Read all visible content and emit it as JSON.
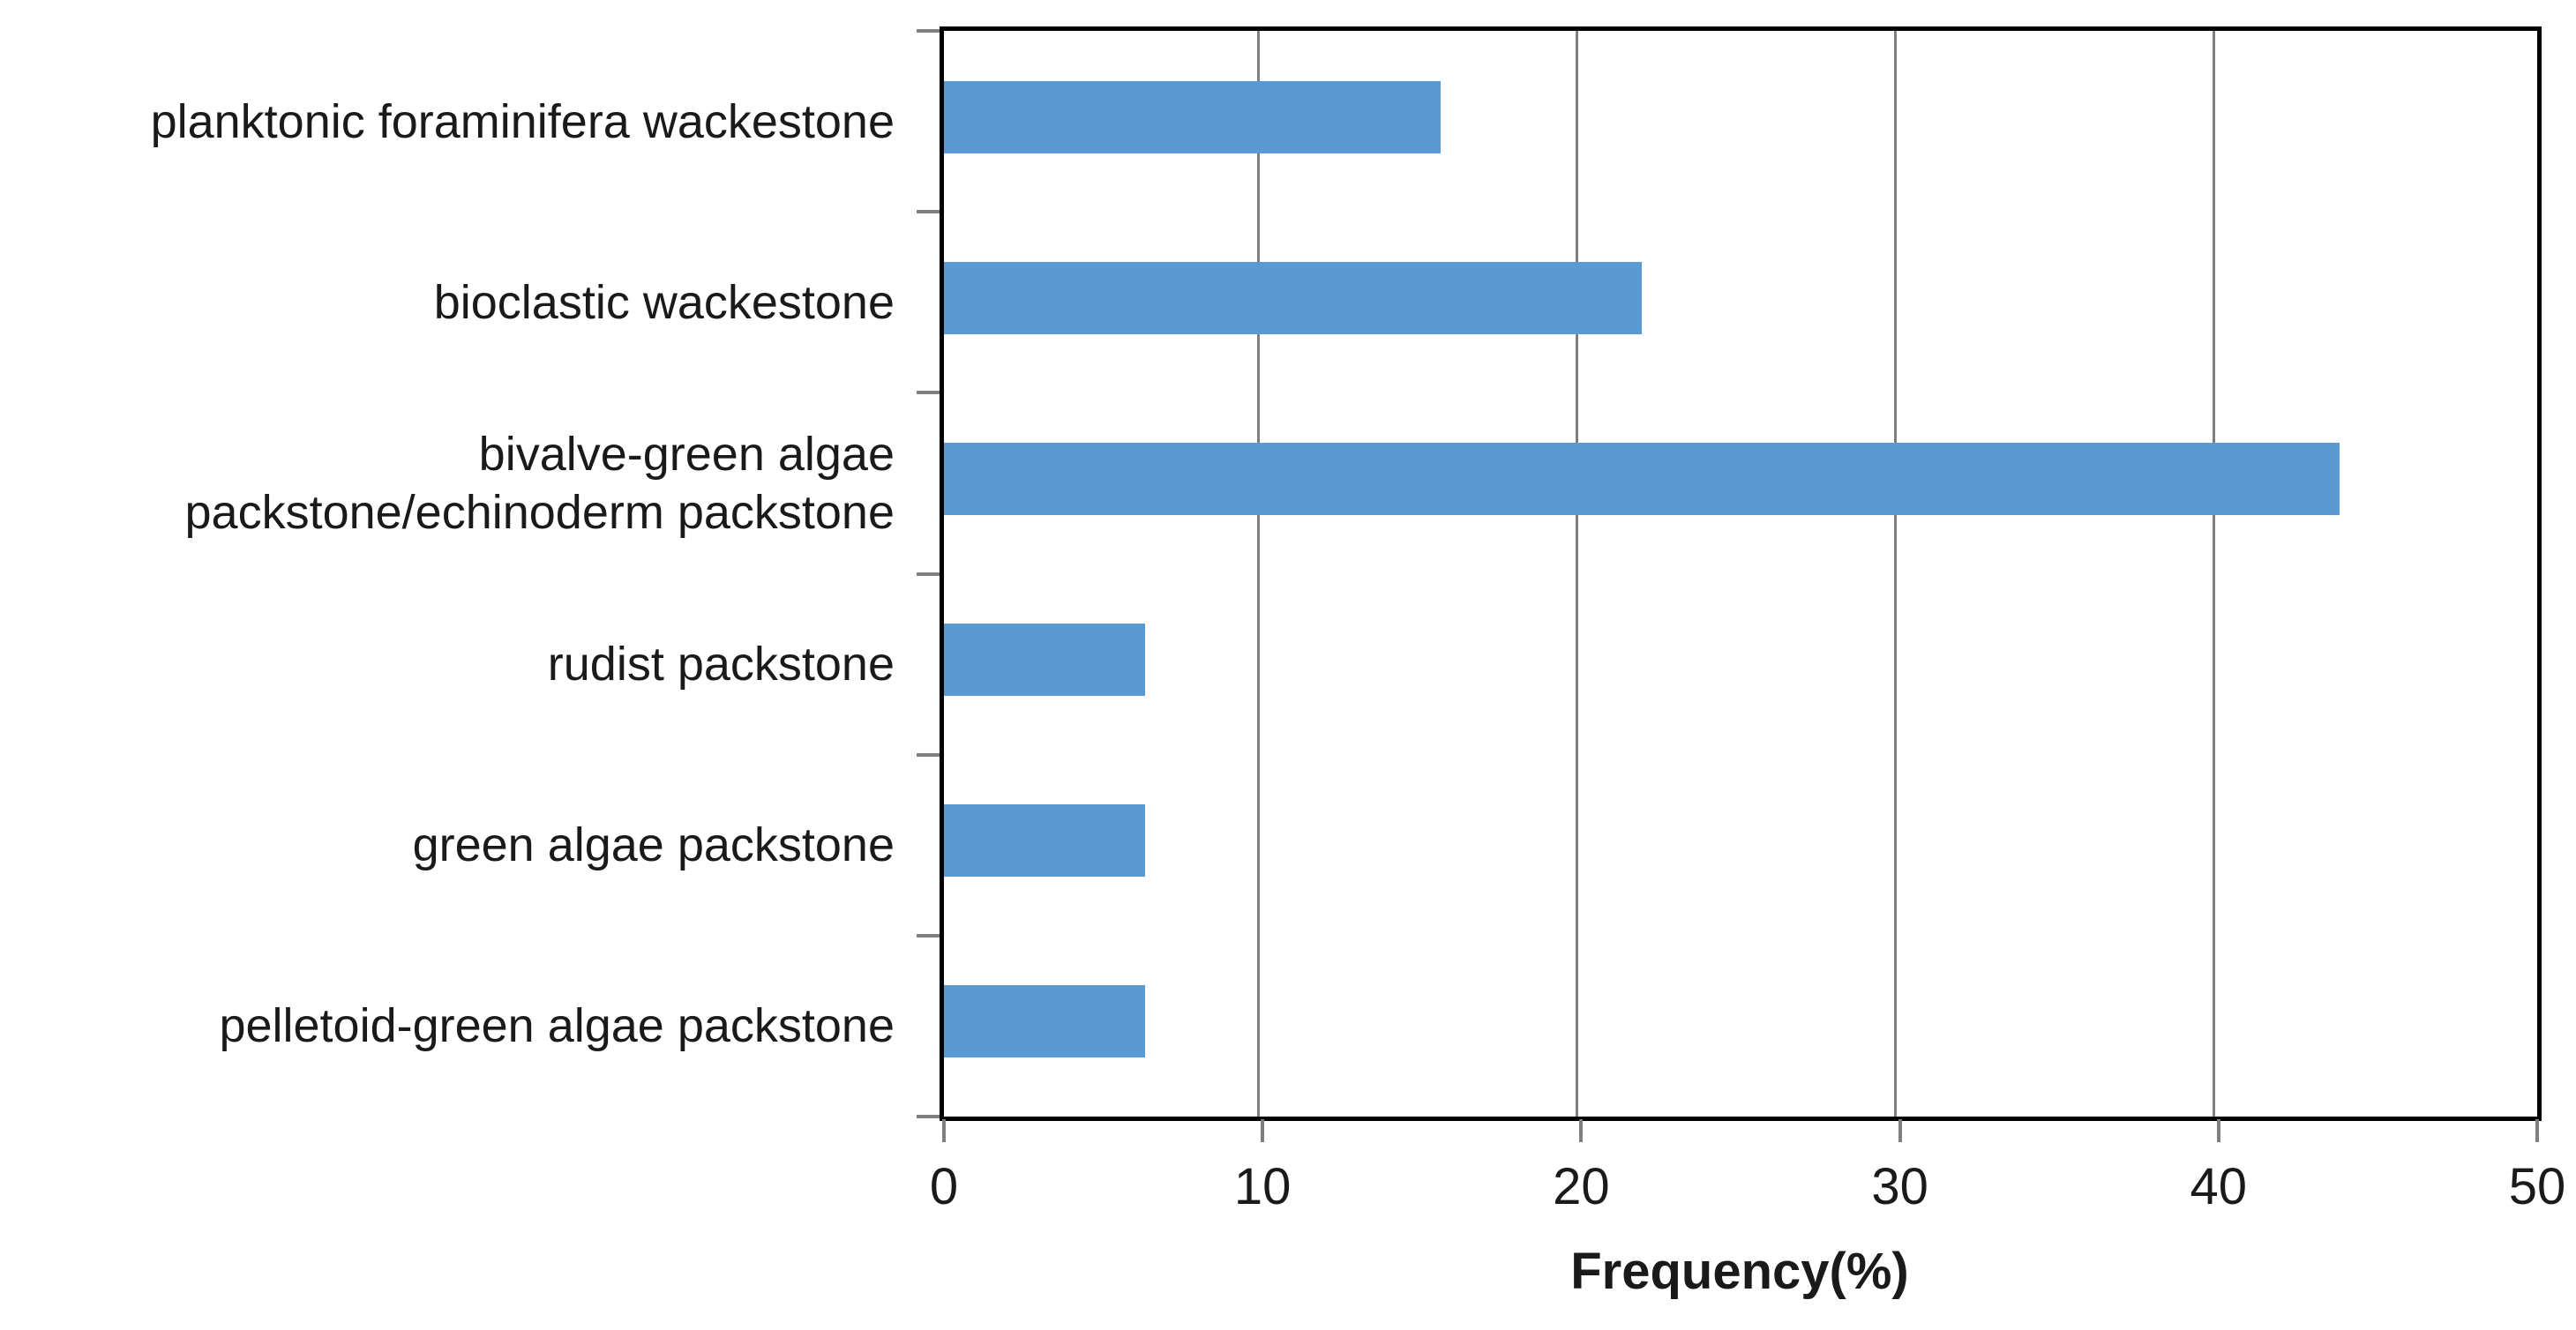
{
  "chart_data": {
    "type": "bar",
    "orientation": "horizontal",
    "title": "",
    "categories": [
      "planktonic foraminifera wackestone",
      "bioclastic wackestone",
      "bivalve-green algae\npackstone/echinoderm packstone",
      "rudist packstone",
      "green algae packstone",
      "pelletoid-green algae packstone"
    ],
    "values": [
      15.6,
      21.9,
      43.8,
      6.3,
      6.3,
      6.3
    ],
    "xlabel": "Frequency(%)",
    "ylabel": "",
    "xlim": [
      0,
      50
    ],
    "xticks": [
      0,
      10,
      20,
      30,
      40,
      50
    ],
    "grid": "vertical-gridlines",
    "legend_position": "none",
    "bar_color": "#5A99D4",
    "gridline_color": "#7F7F7F",
    "axis_color": "#000000",
    "text_color": "#1A1A1A",
    "background_color": "#FFFFFF"
  }
}
